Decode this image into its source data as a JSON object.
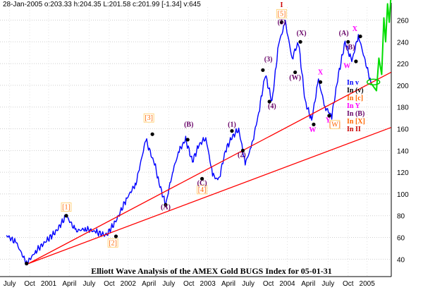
{
  "header": {
    "ohlc_line": "28-Jan-2005  o:203.33 h:204.35 L:201.58 c:201.99 [-1.34] v:645"
  },
  "chart_data": {
    "type": "line",
    "title": "Elliott Wave Analysis of the AMEX Gold BUGS Index for 05-01-31",
    "xlabel": "",
    "ylabel": "",
    "x_tick_labels": [
      "July",
      "Oct",
      "2001",
      "April",
      "July",
      "Oct",
      "2002",
      "April",
      "July",
      "Oct",
      "2003",
      "April",
      "July",
      "Oct",
      "2004",
      "April",
      "July",
      "Oct",
      "2005"
    ],
    "y_ticks": [
      40,
      60,
      80,
      100,
      120,
      140,
      160,
      180,
      200,
      220,
      240,
      260
    ],
    "ylim": [
      24,
      272
    ],
    "grid": true,
    "colors": {
      "price": "#0000ff",
      "trendline": "#ff0000",
      "projection": "#00dd00",
      "wave_orange": "#ff6600",
      "wave_purple": "#660066",
      "wave_magenta": "#ff00ff",
      "wave_darkred": "#cc0000"
    },
    "series": [
      {
        "kind": "price",
        "x": [
          "2000-07-01",
          "2000-08-15",
          "2000-10-01",
          "2000-11-15",
          "2001-01-01",
          "2001-02-15",
          "2001-04-01",
          "2001-05-15",
          "2001-07-01",
          "2001-08-15",
          "2001-10-01",
          "2001-11-15",
          "2002-01-01",
          "2002-02-15",
          "2002-04-01",
          "2002-05-15",
          "2002-06-01",
          "2002-07-01",
          "2002-08-01",
          "2002-09-01",
          "2002-10-01",
          "2002-11-01",
          "2002-12-01",
          "2003-01-01",
          "2003-02-01",
          "2003-03-01",
          "2003-04-01",
          "2003-05-01",
          "2003-06-01",
          "2003-07-01",
          "2003-08-01",
          "2003-09-01",
          "2003-10-01",
          "2003-11-01",
          "2003-12-01",
          "2004-01-01",
          "2004-02-01",
          "2004-03-01",
          "2004-04-01",
          "2004-05-01",
          "2004-06-01",
          "2004-07-01",
          "2004-08-01",
          "2004-09-01",
          "2004-10-01",
          "2004-11-01",
          "2004-12-01",
          "2005-01-28"
        ],
        "y": [
          62,
          55,
          36,
          48,
          57,
          66,
          80,
          66,
          68,
          65,
          62,
          75,
          95,
          110,
          150,
          125,
          110,
          90,
          120,
          140,
          150,
          130,
          145,
          152,
          118,
          112,
          140,
          152,
          160,
          128,
          145,
          175,
          210,
          185,
          238,
          258,
          225,
          240,
          185,
          168,
          205,
          180,
          172,
          210,
          240,
          222,
          246,
          202
        ]
      },
      {
        "kind": "trendline",
        "x": [
          "2000-10-10",
          "2005-04-30"
        ],
        "y": [
          36.0,
          212.0
        ]
      },
      {
        "kind": "trendline",
        "x": [
          "2000-10-10",
          "2005-04-30"
        ],
        "y": [
          36.0,
          161.2
        ]
      },
      {
        "kind": "projection",
        "x": [
          "2005-01-28",
          "2005-02-22",
          "2005-03-05",
          "2005-03-18",
          "2005-03-28",
          "2005-04-05",
          "2005-04-14",
          "2005-04-22",
          "2005-04-30"
        ],
        "y": [
          202,
          195,
          225,
          210,
          262,
          240,
          275,
          258,
          284
        ]
      }
    ],
    "wave_labels": [
      {
        "text": "[1]",
        "x": "2001-04-01",
        "y": 86,
        "color": "#ff6600",
        "box": true
      },
      {
        "text": "[2]",
        "x": "2001-11-01",
        "y": 53,
        "color": "#ff6600",
        "box": true
      },
      {
        "text": "[3]",
        "x": "2002-04-15",
        "y": 168,
        "color": "#ff6600",
        "box": true
      },
      {
        "text": "[4]",
        "x": "2002-12-15",
        "y": 102,
        "color": "#ff6600",
        "box": true
      },
      {
        "text": "[5]",
        "x": "2003-12-15",
        "y": 264,
        "color": "#ff6600",
        "box": true
      },
      {
        "text": "I",
        "x": "2003-12-15",
        "y": 272,
        "color": "#cc0000",
        "box": false
      },
      {
        "text": "(A)",
        "x": "2002-07-01",
        "y": 86,
        "color": "#660066",
        "box": false
      },
      {
        "text": "(B)",
        "x": "2002-10-15",
        "y": 162,
        "color": "#660066",
        "box": false
      },
      {
        "text": "(C)",
        "x": "2002-12-15",
        "y": 108,
        "color": "#660066",
        "box": false
      },
      {
        "text": "(1)",
        "x": "2003-05-01",
        "y": 162,
        "color": "#660066",
        "box": false
      },
      {
        "text": "(2)",
        "x": "2003-06-15",
        "y": 134,
        "color": "#660066",
        "box": false
      },
      {
        "text": "(3)",
        "x": "2003-10-15",
        "y": 222,
        "color": "#660066",
        "box": false
      },
      {
        "text": "(4)",
        "x": "2003-11-01",
        "y": 179,
        "color": "#660066",
        "box": false
      },
      {
        "text": "(5)",
        "x": "2003-12-15",
        "y": 256,
        "color": "#660066",
        "box": false
      },
      {
        "text": "(W)",
        "x": "2004-02-15",
        "y": 205,
        "color": "#660066",
        "box": false
      },
      {
        "text": "(X)",
        "x": "2004-03-15",
        "y": 246,
        "color": "#660066",
        "box": false
      },
      {
        "text": "(A)",
        "x": "2004-09-25",
        "y": 246,
        "color": "#660066",
        "box": false
      },
      {
        "text": "(B)",
        "x": "2004-10-25",
        "y": 233,
        "color": "#660066",
        "box": false
      },
      {
        "text": "X",
        "x": "2004-06-10",
        "y": 210,
        "color": "#ff00ff",
        "box": false
      },
      {
        "text": "W",
        "x": "2004-05-05",
        "y": 157,
        "color": "#ff00ff",
        "box": false
      },
      {
        "text": "Y",
        "x": "2004-07-15",
        "y": 166,
        "color": "#ff00ff",
        "box": false
      },
      {
        "text": "W",
        "x": "2004-10-10",
        "y": 216,
        "color": "#ff00ff",
        "box": false
      },
      {
        "text": "X",
        "x": "2004-11-15",
        "y": 250,
        "color": "#ff00ff",
        "box": false
      },
      {
        "text": "[W]",
        "x": "2004-08-15",
        "y": 162,
        "color": "#ff6600",
        "box": true
      }
    ],
    "pivots": [
      {
        "x": "2000-10-01",
        "y": 36
      },
      {
        "x": "2001-04-01",
        "y": 80
      },
      {
        "x": "2001-11-15",
        "y": 61
      },
      {
        "x": "2002-05-01",
        "y": 155
      },
      {
        "x": "2002-07-01",
        "y": 90
      },
      {
        "x": "2002-10-10",
        "y": 150
      },
      {
        "x": "2002-12-15",
        "y": 114
      },
      {
        "x": "2003-05-01",
        "y": 158
      },
      {
        "x": "2003-06-20",
        "y": 140
      },
      {
        "x": "2003-09-20",
        "y": 214
      },
      {
        "x": "2003-10-20",
        "y": 185
      },
      {
        "x": "2003-12-15",
        "y": 258
      },
      {
        "x": "2004-02-15",
        "y": 212
      },
      {
        "x": "2004-03-10",
        "y": 240
      },
      {
        "x": "2004-05-10",
        "y": 164
      },
      {
        "x": "2004-06-10",
        "y": 203
      },
      {
        "x": "2004-07-20",
        "y": 172
      },
      {
        "x": "2004-10-15",
        "y": 240
      },
      {
        "x": "2004-11-20",
        "y": 222
      },
      {
        "x": "2004-12-10",
        "y": 245
      }
    ],
    "in_labels": [
      {
        "text": "In v",
        "color": "#0000ff"
      },
      {
        "text": "In (v)",
        "color": "#000000"
      },
      {
        "text": "In [c]",
        "color": "#ff6600"
      },
      {
        "text": "In Y",
        "color": "#ff00ff"
      },
      {
        "text": "In (B)",
        "color": "#660066"
      },
      {
        "text": "In [X]",
        "color": "#ff6600"
      },
      {
        "text": "In II",
        "color": "#cc0000"
      }
    ]
  }
}
